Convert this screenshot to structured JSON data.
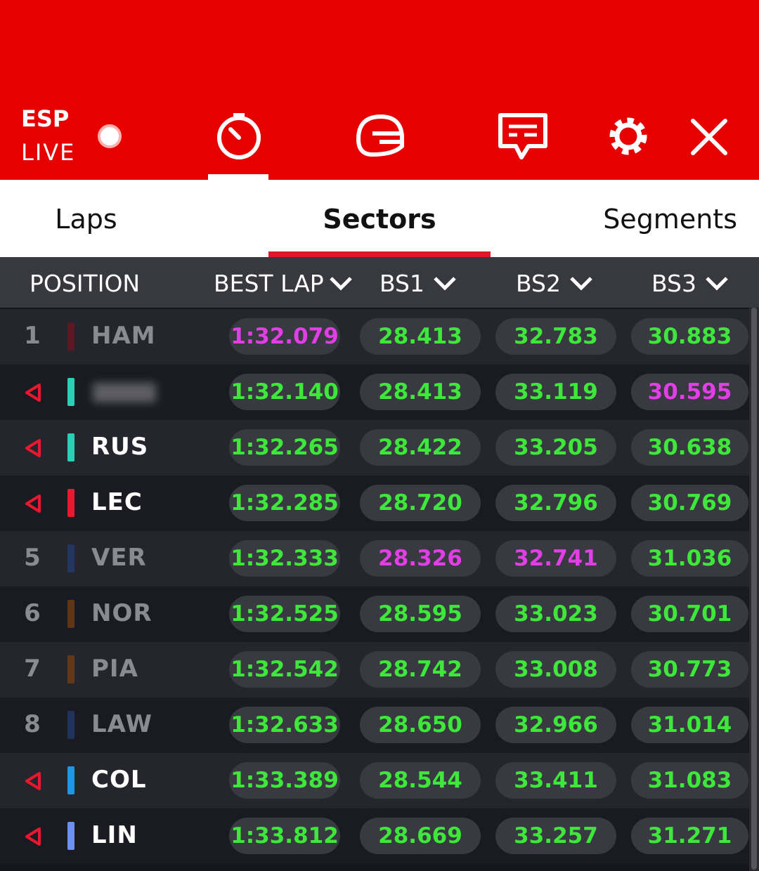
{
  "header": {
    "event": "ESP",
    "status": "LIVE"
  },
  "tabs": {
    "items": [
      "Laps",
      "Sectors",
      "Segments"
    ],
    "active": 1
  },
  "table": {
    "columns": [
      "POSITION",
      "BEST LAP",
      "BS1",
      "BS2",
      "BS3"
    ],
    "rows": [
      {
        "position": "1",
        "driver": "HAM",
        "team_color": "#6e1420",
        "times": [
          "1:32.079",
          "28.413",
          "32.783",
          "30.883"
        ],
        "fastest": [
          0
        ]
      },
      {
        "position": null,
        "driver": null,
        "team_color": "#2ccfb5",
        "times": [
          "1:32.140",
          "28.413",
          "33.119",
          "30.595"
        ],
        "fastest": [
          3
        ]
      },
      {
        "position": null,
        "driver": "RUS",
        "team_color": "#2ccfb5",
        "times": [
          "1:32.265",
          "28.422",
          "33.205",
          "30.638"
        ],
        "fastest": []
      },
      {
        "position": null,
        "driver": "LEC",
        "team_color": "#e8192c",
        "times": [
          "1:32.285",
          "28.720",
          "32.796",
          "30.769"
        ],
        "fastest": []
      },
      {
        "position": "5",
        "driver": "VER",
        "team_color": "#223c70",
        "times": [
          "1:32.333",
          "28.326",
          "32.741",
          "31.036"
        ],
        "fastest": [
          1,
          2
        ]
      },
      {
        "position": "6",
        "driver": "NOR",
        "team_color": "#7a3d12",
        "times": [
          "1:32.525",
          "28.595",
          "33.023",
          "30.701"
        ],
        "fastest": []
      },
      {
        "position": "7",
        "driver": "PIA",
        "team_color": "#7a3d12",
        "times": [
          "1:32.542",
          "28.742",
          "33.008",
          "30.773"
        ],
        "fastest": []
      },
      {
        "position": "8",
        "driver": "LAW",
        "team_color": "#223c70",
        "times": [
          "1:32.633",
          "28.650",
          "32.966",
          "31.014"
        ],
        "fastest": []
      },
      {
        "position": null,
        "driver": "COL",
        "team_color": "#1e96e6",
        "times": [
          "1:33.389",
          "28.544",
          "33.411",
          "31.083"
        ],
        "fastest": []
      },
      {
        "position": null,
        "driver": "LIN",
        "team_color": "#6c90f2",
        "times": [
          "1:33.812",
          "28.669",
          "33.257",
          "31.271"
        ],
        "fastest": []
      }
    ]
  }
}
